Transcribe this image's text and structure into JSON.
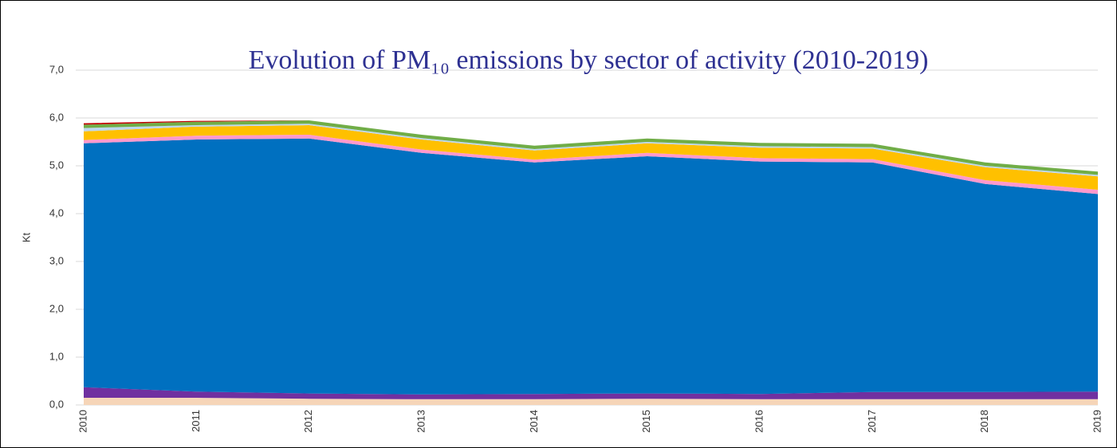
{
  "chart_data": {
    "type": "stacked_area",
    "title": "Evolution of PM₁₀ emissions by sector of activity (2010-2019)",
    "y_label": "Kt",
    "categories": [
      "2010",
      "2011",
      "2012",
      "2013",
      "2014",
      "2015",
      "2016",
      "2017",
      "2018",
      "2019"
    ],
    "series": [
      {
        "color": "#f6d5b8",
        "values": [
          0.15,
          0.15,
          0.13,
          0.12,
          0.12,
          0.13,
          0.12,
          0.12,
          0.12,
          0.12
        ]
      },
      {
        "color": "#7030a0",
        "values": [
          0.22,
          0.13,
          0.11,
          0.1,
          0.11,
          0.11,
          0.11,
          0.15,
          0.15,
          0.16
        ]
      },
      {
        "color": "#0070c0",
        "values": [
          5.1,
          5.27,
          5.33,
          5.05,
          4.84,
          4.96,
          4.86,
          4.8,
          4.35,
          4.13
        ]
      },
      {
        "color": "#ff99cc",
        "values": [
          0.07,
          0.08,
          0.08,
          0.07,
          0.06,
          0.07,
          0.07,
          0.07,
          0.08,
          0.09
        ]
      },
      {
        "color": "#ffc000",
        "values": [
          0.18,
          0.19,
          0.2,
          0.21,
          0.19,
          0.2,
          0.22,
          0.22,
          0.27,
          0.28
        ]
      },
      {
        "color": "#bdd7ee",
        "values": [
          0.07,
          0.03,
          0.03,
          0.03,
          0.03,
          0.03,
          0.03,
          0.03,
          0.03,
          0.03
        ]
      },
      {
        "color": "#70ad47",
        "values": [
          0.07,
          0.07,
          0.07,
          0.07,
          0.07,
          0.07,
          0.07,
          0.07,
          0.07,
          0.07
        ]
      },
      {
        "color": "#c00000",
        "values": [
          0.03,
          0.02,
          0,
          0,
          0,
          0,
          0,
          0,
          0,
          0
        ]
      }
    ],
    "ylim": [
      0,
      7
    ],
    "yticks": [
      {
        "value": 0,
        "label": "0,0"
      },
      {
        "value": 1,
        "label": "1,0"
      },
      {
        "value": 2,
        "label": "2,0"
      },
      {
        "value": 3,
        "label": "3,0"
      },
      {
        "value": 4,
        "label": "4,0"
      },
      {
        "value": 5,
        "label": "5,0"
      },
      {
        "value": 6,
        "label": "6,0"
      },
      {
        "value": 7,
        "label": "7,0"
      }
    ],
    "grid": true
  }
}
